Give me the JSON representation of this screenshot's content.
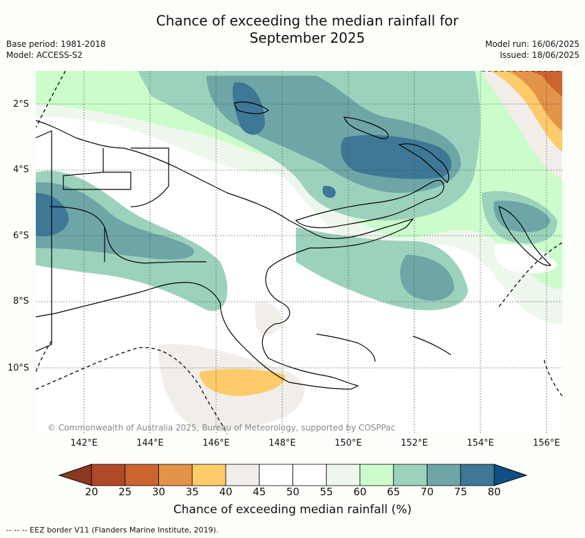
{
  "title_line1": "Chance of exceeding the median rainfall for",
  "title_line2": "September 2025",
  "base_period": "Base period: 1981-2018",
  "model": "Model: ACCESS-S2",
  "model_run": "Model run: 16/06/2025",
  "issued": "Issued: 18/06/2025",
  "copyright": "© Commonwealth of Australia 2025, Bureau of Meteorology, supported by COSPPac",
  "lat_labels": [
    "2°S",
    "4°S",
    "6°S",
    "8°S",
    "10°S"
  ],
  "lon_labels": [
    "142°E",
    "144°E",
    "146°E",
    "148°E",
    "150°E",
    "152°E",
    "154°E",
    "156°E"
  ],
  "colorbar": {
    "ticks": [
      "20",
      "25",
      "30",
      "35",
      "40",
      "45",
      "50",
      "55",
      "60",
      "65",
      "70",
      "75",
      "80"
    ],
    "label": "Chance of exceeding median rainfall (%)",
    "low_extend_color": "#8b3a1f",
    "high_extend_color": "#0f4f86",
    "colors": [
      "#b0482a",
      "#cb642f",
      "#e39449",
      "#fecb6b",
      "#f1eee9",
      "#ffffff",
      "#ffffff",
      "#eef7ec",
      "#ccfccc",
      "#9cd2bc",
      "#6ea6a8",
      "#3e7896"
    ]
  },
  "footnote": "--  --  -- EEZ border V11 (Flanders Marine Institute, 2019)."
}
